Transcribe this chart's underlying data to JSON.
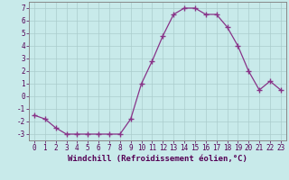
{
  "x": [
    0,
    1,
    2,
    3,
    4,
    5,
    6,
    7,
    8,
    9,
    10,
    11,
    12,
    13,
    14,
    15,
    16,
    17,
    18,
    19,
    20,
    21,
    22,
    23
  ],
  "y": [
    -1.5,
    -1.8,
    -2.5,
    -3.0,
    -3.0,
    -3.0,
    -3.0,
    -3.0,
    -3.0,
    -1.8,
    1.0,
    2.8,
    4.8,
    6.5,
    7.0,
    7.0,
    6.5,
    6.5,
    5.5,
    4.0,
    2.0,
    0.5,
    1.2,
    0.5
  ],
  "line_color": "#883388",
  "marker": "+",
  "marker_size": 4,
  "marker_lw": 1.0,
  "bg_color": "#c8eaea",
  "grid_color": "#aacccc",
  "axis_color": "#888888",
  "xlabel": "Windchill (Refroidissement éolien,°C)",
  "xlim": [
    -0.5,
    23.5
  ],
  "ylim": [
    -3.5,
    7.5
  ],
  "yticks": [
    -3,
    -2,
    -1,
    0,
    1,
    2,
    3,
    4,
    5,
    6,
    7
  ],
  "xticks": [
    0,
    1,
    2,
    3,
    4,
    5,
    6,
    7,
    8,
    9,
    10,
    11,
    12,
    13,
    14,
    15,
    16,
    17,
    18,
    19,
    20,
    21,
    22,
    23
  ],
  "tick_fontsize": 5.5,
  "xlabel_fontsize": 6.5,
  "linewidth": 0.9
}
